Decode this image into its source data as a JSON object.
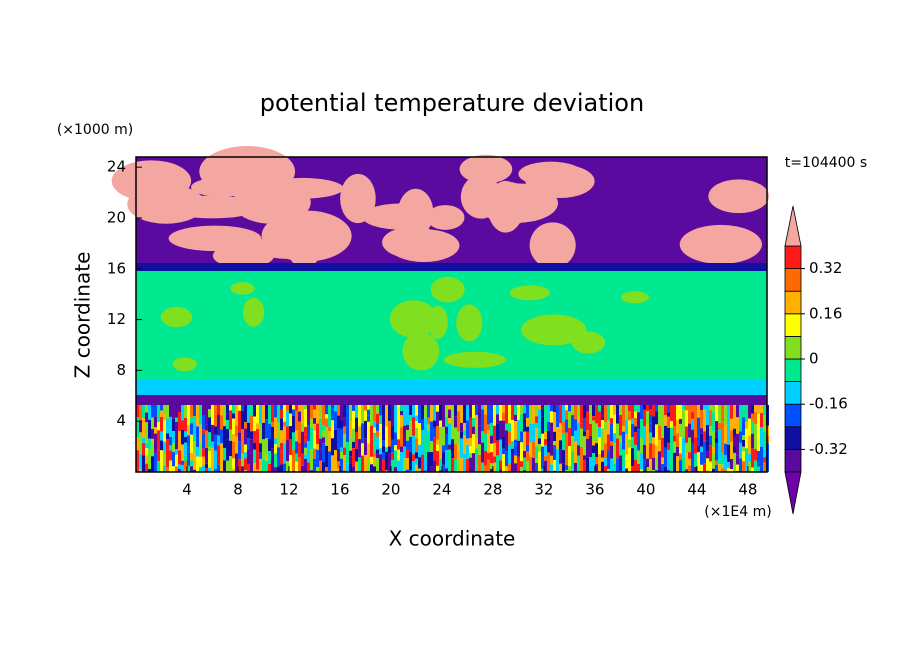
{
  "chart_data": {
    "type": "contour",
    "title": "potential temperature deviation",
    "xlabel": "X coordinate",
    "ylabel": "Z coordinate",
    "xunit": "(×1E4 m)",
    "yunit": "(×1000 m)",
    "time_label": "t=104400 s",
    "xlim": [
      0,
      49.5
    ],
    "xticks": [
      4,
      8,
      12,
      16,
      20,
      24,
      28,
      32,
      36,
      40,
      44,
      48
    ],
    "ylim": [
      0,
      24.8
    ],
    "yticks": [
      4,
      8,
      12,
      16,
      20,
      24
    ],
    "colorbar": {
      "levels": [
        -0.4,
        -0.32,
        -0.24,
        -0.16,
        -0.08,
        0,
        0.08,
        0.16,
        0.24,
        0.32,
        0.4
      ],
      "ticks": [
        -0.32,
        -0.16,
        0,
        0.16,
        0.32
      ],
      "colors": [
        "#5a0a9e",
        "#1010a0",
        "#0050ff",
        "#00d0ff",
        "#00e890",
        "#80e020",
        "#ffff00",
        "#ffb000",
        "#ff6a00",
        "#ff1a1a"
      ],
      "under_color": "#7000a8",
      "over_color": "#f4a6a0"
    }
  }
}
